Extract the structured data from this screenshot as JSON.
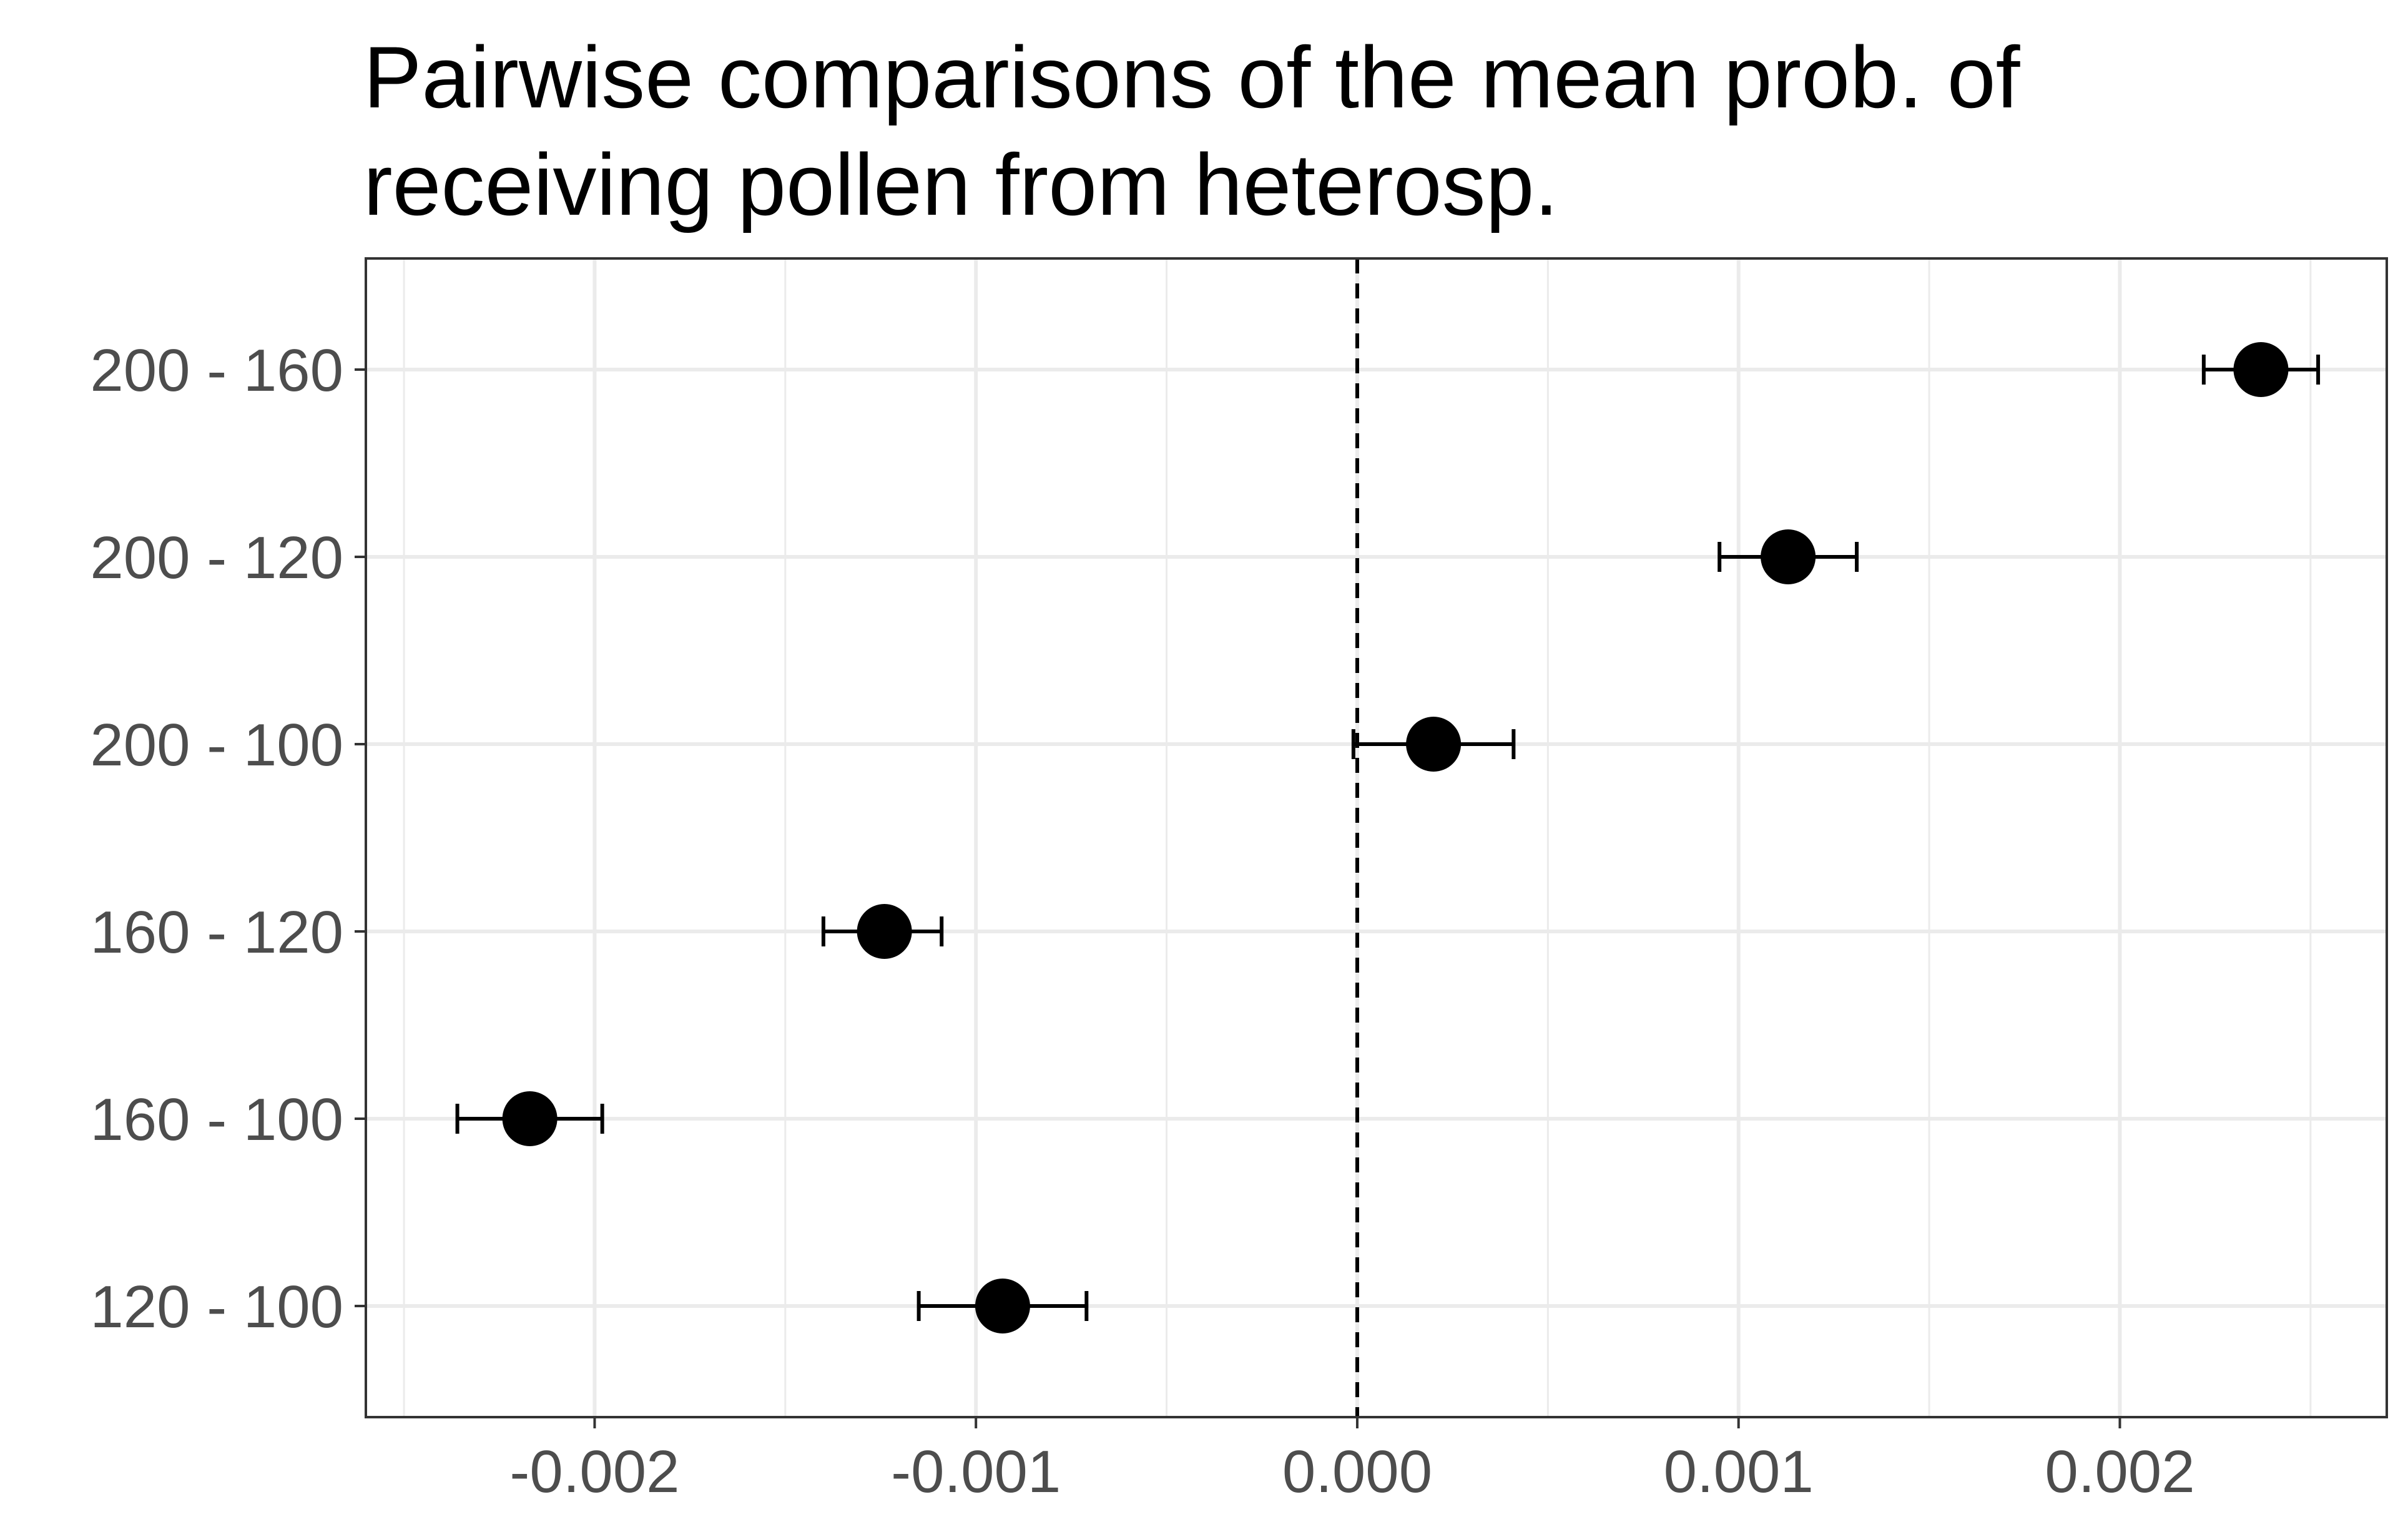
{
  "chart_data": {
    "type": "scatter",
    "title_lines": [
      "Pairwise comparisons of the mean prob. of",
      "receiving pollen from heterosp."
    ],
    "xlabel": "",
    "ylabel": "",
    "xlim": [
      -0.0026,
      0.0027
    ],
    "x_ticks": [
      -0.002,
      -0.001,
      0.0,
      0.001,
      0.002
    ],
    "x_tick_labels": [
      "-0.002",
      "-0.001",
      "0.000",
      "0.001",
      "0.002"
    ],
    "x_minor_ticks": [
      -0.0025,
      -0.0015,
      -0.0005,
      0.0005,
      0.0015,
      0.0025
    ],
    "reference_line_x": 0.0,
    "categories": [
      "200 - 160",
      "200 - 120",
      "200 - 100",
      "160 - 120",
      "160 - 100",
      "120 - 100"
    ],
    "series": [
      {
        "values": [
          0.00237,
          0.00113,
          0.0002,
          -0.00124,
          -0.00217,
          -0.00093
        ],
        "lower": [
          0.00222,
          0.00095,
          -1e-05,
          -0.0014,
          -0.00236,
          -0.00115
        ],
        "upper": [
          0.00252,
          0.00131,
          0.00041,
          -0.00109,
          -0.00198,
          -0.00071
        ]
      }
    ],
    "grid": true,
    "theme": "bw",
    "colors": {
      "point": "#000000",
      "errorbar": "#000000",
      "grid": "#ebebeb",
      "panel_border": "#333333",
      "tick_label": "#4d4d4d",
      "reference_line": "#000000"
    }
  }
}
